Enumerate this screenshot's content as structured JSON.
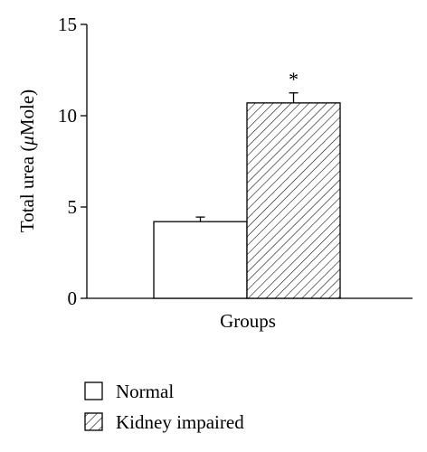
{
  "chart_data": {
    "type": "bar",
    "categories": [
      "Normal",
      "Kidney impaired"
    ],
    "values": [
      4.2,
      10.7
    ],
    "errors": [
      0.25,
      0.55
    ],
    "significance_markers": [
      "",
      "*"
    ],
    "fills": [
      "white",
      "diagonal-hatch"
    ],
    "xlabel": "Groups",
    "ylabel_prefix": "Total urea (",
    "ylabel_unit_mu": "μ",
    "ylabel_unit_rest": "Mole)",
    "ylim": [
      0,
      15
    ],
    "yticks": [
      0,
      5,
      10,
      15
    ],
    "ytick_labels": [
      "0",
      "5",
      "10",
      "15"
    ],
    "grid": false,
    "legend_position": "bottom-left",
    "legend": [
      "Normal",
      "Kidney impaired"
    ]
  }
}
